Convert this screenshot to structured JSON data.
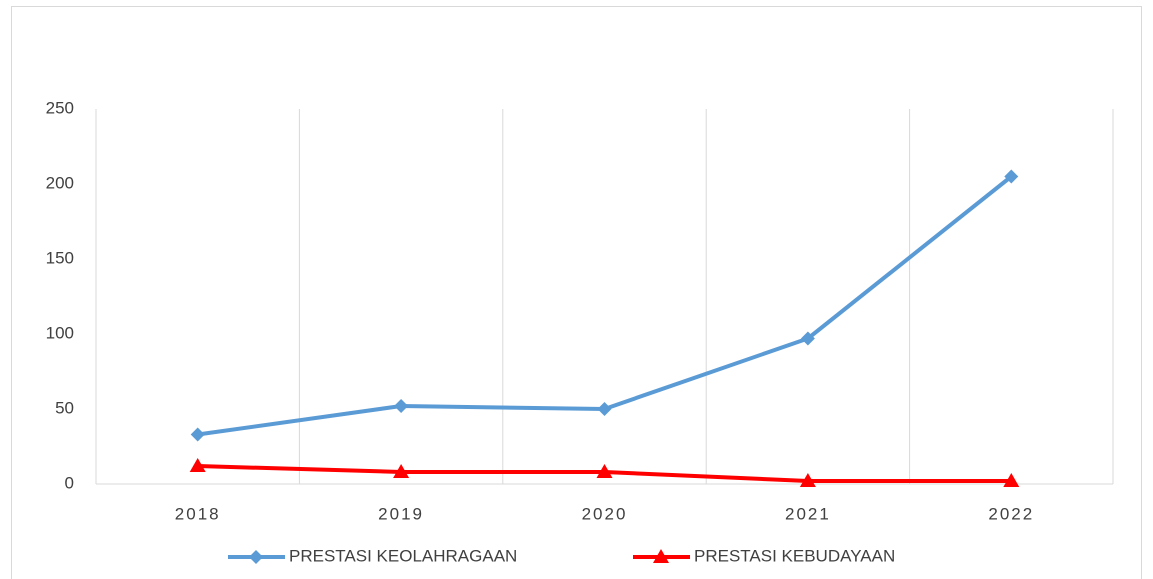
{
  "chart_data": {
    "type": "line",
    "categories": [
      "2018",
      "2019",
      "2020",
      "2021",
      "2022"
    ],
    "series": [
      {
        "name": "PRESTASI KEOLAHRAGAAN",
        "color": "#5b9bd5",
        "marker": "diamond",
        "values": [
          33,
          52,
          50,
          97,
          205
        ]
      },
      {
        "name": "PRESTASI KEBUDAYAAN",
        "color": "#ff0000",
        "marker": "triangle",
        "values": [
          12,
          8,
          8,
          2,
          2
        ]
      }
    ],
    "ylim": [
      0,
      250
    ],
    "yticks": [
      0,
      50,
      100,
      150,
      200,
      250
    ],
    "grid": true,
    "legend": "bottom"
  }
}
